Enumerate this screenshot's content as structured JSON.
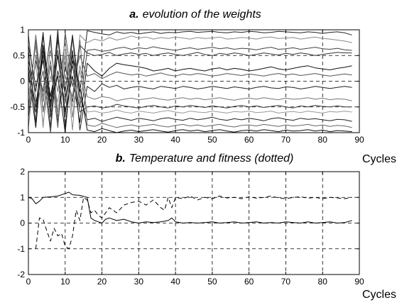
{
  "chart_data": [
    {
      "type": "line",
      "title_prefix": "a.",
      "title": "evolution of the weights",
      "xlabel": "",
      "ylabel": "",
      "xlim": [
        0,
        90
      ],
      "ylim": [
        -1,
        1
      ],
      "xticks": [
        0,
        10,
        20,
        30,
        40,
        50,
        60,
        70,
        80,
        90
      ],
      "yticks": [
        -1,
        -0.5,
        0,
        0.5,
        1
      ],
      "xtick_labels": [
        "0",
        "10",
        "20",
        "30",
        "40",
        "50",
        "60",
        "70",
        "80",
        "90"
      ],
      "ytick_labels": [
        "-1",
        "-0.5",
        "0",
        "0.5",
        "1"
      ],
      "grid": true,
      "x": [
        0,
        2,
        4,
        6,
        8,
        10,
        12,
        14,
        16,
        18,
        20,
        22,
        24,
        26,
        28,
        30,
        32,
        34,
        36,
        38,
        40,
        42,
        44,
        46,
        48,
        50,
        52,
        54,
        56,
        58,
        60,
        62,
        64,
        66,
        68,
        70,
        72,
        74,
        76,
        78,
        80,
        82,
        84,
        86,
        88
      ],
      "series": [
        {
          "color": "#222222",
          "values": [
            0.6,
            -0.8,
            0.9,
            -0.5,
            1,
            -0.9,
            0.4,
            -0.2,
            0.98,
            0.95,
            0.92,
            0.9,
            0.96,
            0.93,
            0.95,
            0.92,
            0.94,
            0.96,
            0.93,
            0.95,
            0.94,
            0.96,
            0.97,
            0.95,
            0.96,
            0.97,
            0.95,
            0.94,
            0.96,
            0.95,
            0.97,
            0.96,
            0.94,
            0.95,
            0.97,
            0.96,
            0.95,
            0.94,
            0.96,
            0.95,
            0.93,
            0.95,
            0.96,
            0.94,
            0.9
          ]
        },
        {
          "color": "#888888",
          "values": [
            -0.3,
            0.7,
            -0.9,
            0.8,
            -0.6,
            0.5,
            -0.95,
            0.9,
            0.75,
            0.82,
            0.78,
            0.85,
            0.8,
            0.83,
            0.88,
            0.84,
            0.86,
            0.82,
            0.85,
            0.83,
            0.86,
            0.84,
            0.82,
            0.85,
            0.83,
            0.84,
            0.86,
            0.82,
            0.83,
            0.85,
            0.84,
            0.82,
            0.85,
            0.86,
            0.83,
            0.84,
            0.85,
            0.82,
            0.84,
            0.86,
            0.83,
            0.82,
            0.8,
            0.78,
            0.75
          ]
        },
        {
          "color": "#444444",
          "values": [
            0.9,
            -0.4,
            0.2,
            -1,
            0.6,
            -0.7,
            0.85,
            -0.5,
            0.6,
            0.62,
            0.58,
            0.6,
            0.64,
            0.66,
            0.62,
            0.65,
            0.63,
            0.67,
            0.64,
            0.62,
            0.6,
            0.63,
            0.65,
            0.62,
            0.64,
            0.66,
            0.63,
            0.65,
            0.62,
            0.64,
            0.63,
            0.61,
            0.64,
            0.66,
            0.62,
            0.63,
            0.65,
            0.62,
            0.64,
            0.66,
            0.63,
            0.62,
            0.64,
            0.61,
            0.6
          ]
        },
        {
          "color": "#333333",
          "values": [
            -0.7,
            0.4,
            -0.2,
            0.9,
            -0.8,
            0.3,
            -0.4,
            0.7,
            0.55,
            0.5,
            0.52,
            0.56,
            0.5,
            0.53,
            0.55,
            0.52,
            0.54,
            0.5,
            0.53,
            0.55,
            0.52,
            0.5,
            0.53,
            0.56,
            0.52,
            0.5,
            0.54,
            0.52,
            0.55,
            0.53,
            0.5,
            0.52,
            0.55,
            0.53,
            0.51,
            0.54,
            0.52,
            0.55,
            0.53,
            0.5,
            0.52,
            0.54,
            0.56,
            0.55,
            0.55
          ]
        },
        {
          "color": "#111111",
          "values": [
            0.2,
            -0.9,
            0.7,
            -0.3,
            0.5,
            -0.6,
            0.1,
            -0.8,
            0.35,
            0.2,
            0.1,
            0.25,
            0.35,
            0.32,
            0.3,
            0.28,
            0.25,
            0.2,
            0.22,
            0.25,
            0.2,
            0.23,
            0.25,
            0.22,
            0.2,
            0.24,
            0.26,
            0.22,
            0.25,
            0.23,
            0.2,
            0.22,
            0.25,
            0.28,
            0.24,
            0.22,
            0.25,
            0.28,
            0.3,
            0.26,
            0.24,
            0.22,
            0.25,
            0.27,
            0.3
          ]
        },
        {
          "color": "#555555",
          "values": [
            -0.5,
            0.8,
            -0.6,
            0.3,
            -0.9,
            0.95,
            -0.1,
            0.5,
            0.1,
            0.15,
            0.05,
            0.12,
            0.18,
            0.15,
            0.12,
            0.14,
            0.1,
            0.13,
            0.16,
            0.12,
            0.1,
            0.14,
            0.12,
            0.15,
            0.13,
            0.1,
            0.12,
            0.15,
            0.13,
            0.11,
            0.14,
            0.12,
            0.1,
            0.13,
            0.15,
            0.12,
            0.14,
            0.11,
            0.13,
            0.15,
            0.12,
            0.1,
            0.12,
            0.14,
            0.12
          ]
        },
        {
          "color": "#222222",
          "values": [
            0.4,
            -0.2,
            0.95,
            -0.7,
            0.2,
            -0.4,
            0.6,
            -0.95,
            -0.1,
            -0.2,
            -0.05,
            -0.12,
            -0.08,
            -0.15,
            -0.12,
            -0.1,
            -0.13,
            -0.15,
            -0.1,
            -0.12,
            -0.14,
            -0.1,
            -0.12,
            -0.15,
            -0.13,
            -0.1,
            -0.12,
            -0.14,
            -0.11,
            -0.13,
            -0.15,
            -0.12,
            -0.1,
            -0.13,
            -0.14,
            -0.11,
            -0.12,
            -0.15,
            -0.13,
            -0.1,
            -0.12,
            -0.14,
            -0.12,
            -0.1,
            -0.12
          ]
        },
        {
          "color": "#777777",
          "values": [
            -0.9,
            0.5,
            -0.3,
            0.6,
            -0.2,
            0.8,
            -0.7,
            0.3,
            -0.3,
            -0.35,
            -0.3,
            -0.32,
            -0.38,
            -0.35,
            -0.33,
            -0.36,
            -0.34,
            -0.32,
            -0.35,
            -0.37,
            -0.34,
            -0.32,
            -0.35,
            -0.33,
            -0.36,
            -0.34,
            -0.32,
            -0.35,
            -0.37,
            -0.34,
            -0.33,
            -0.35,
            -0.32,
            -0.34,
            -0.36,
            -0.33,
            -0.35,
            -0.34,
            -0.32,
            -0.35,
            -0.33,
            -0.36,
            -0.34,
            -0.35,
            -0.38
          ]
        },
        {
          "color": "#333333",
          "values": [
            0.1,
            -0.6,
            0.5,
            -0.9,
            0.9,
            -0.3,
            0.3,
            -0.6,
            -0.5,
            -0.48,
            -0.52,
            -0.5,
            -0.45,
            -0.48,
            -0.5,
            -0.52,
            -0.49,
            -0.47,
            -0.5,
            -0.52,
            -0.48,
            -0.5,
            -0.47,
            -0.49,
            -0.51,
            -0.48,
            -0.5,
            -0.52,
            -0.49,
            -0.47,
            -0.5,
            -0.48,
            -0.51,
            -0.49,
            -0.47,
            -0.5,
            -0.52,
            -0.48,
            -0.5,
            -0.47,
            -0.49,
            -0.5,
            -0.48,
            -0.5,
            -0.5
          ]
        },
        {
          "color": "#999999",
          "values": [
            -0.2,
            0.3,
            -0.8,
            0.1,
            -0.4,
            0.6,
            -0.5,
            0.2,
            -0.6,
            -0.58,
            -0.62,
            -0.6,
            -0.56,
            -0.6,
            -0.62,
            -0.58,
            -0.6,
            -0.62,
            -0.59,
            -0.57,
            -0.6,
            -0.62,
            -0.58,
            -0.6,
            -0.61,
            -0.58,
            -0.6,
            -0.62,
            -0.59,
            -0.6,
            -0.58,
            -0.61,
            -0.6,
            -0.58,
            -0.62,
            -0.6,
            -0.59,
            -0.61,
            -0.58,
            -0.6,
            -0.62,
            -0.59,
            -0.6,
            -0.58,
            -0.6
          ]
        },
        {
          "color": "#222222",
          "values": [
            0.7,
            -0.1,
            0.4,
            -0.6,
            0.8,
            -0.2,
            0.9,
            -0.3,
            -0.75,
            -0.72,
            -0.78,
            -0.74,
            -0.7,
            -0.73,
            -0.76,
            -0.72,
            -0.74,
            -0.77,
            -0.73,
            -0.71,
            -0.74,
            -0.76,
            -0.72,
            -0.75,
            -0.73,
            -0.7,
            -0.74,
            -0.76,
            -0.73,
            -0.75,
            -0.72,
            -0.74,
            -0.77,
            -0.73,
            -0.71,
            -0.74,
            -0.76,
            -0.72,
            -0.74,
            -0.73,
            -0.75,
            -0.77,
            -0.74,
            -0.75,
            -0.78
          ]
        },
        {
          "color": "#666666",
          "values": [
            -0.6,
            0.9,
            -0.4,
            0.4,
            -0.7,
            0.1,
            -0.3,
            0.8,
            -0.85,
            -0.88,
            -0.82,
            -0.86,
            -0.9,
            -0.87,
            -0.85,
            -0.88,
            -0.86,
            -0.84,
            -0.87,
            -0.89,
            -0.86,
            -0.84,
            -0.87,
            -0.85,
            -0.88,
            -0.86,
            -0.84,
            -0.87,
            -0.89,
            -0.86,
            -0.85,
            -0.87,
            -0.84,
            -0.86,
            -0.88,
            -0.85,
            -0.87,
            -0.86,
            -0.84,
            -0.87,
            -0.85,
            -0.88,
            -0.86,
            -0.87,
            -0.9
          ]
        },
        {
          "color": "#111111",
          "values": [
            0.3,
            -0.5,
            0.6,
            -0.4,
            0.1,
            -1,
            0.5,
            -0.1,
            -0.95,
            -0.98,
            -0.92,
            -0.96,
            -1,
            -0.97,
            -0.95,
            -0.98,
            -0.96,
            -0.94,
            -0.97,
            -0.99,
            -0.96,
            -0.94,
            -0.97,
            -0.95,
            -0.98,
            -0.96,
            -0.94,
            -0.97,
            -0.99,
            -0.96,
            -0.95,
            -0.97,
            -0.94,
            -0.96,
            -0.98,
            -0.95,
            -0.97,
            -0.96,
            -0.94,
            -0.97,
            -0.95,
            -0.98,
            -0.96,
            -0.97,
            -0.98
          ]
        }
      ]
    },
    {
      "type": "line",
      "title_prefix": "b.",
      "title": "Temperature and fitness (dotted)",
      "xlabel": "Cycles",
      "ylabel": "",
      "xlim": [
        0,
        90
      ],
      "ylim": [
        -2,
        2
      ],
      "xticks": [
        0,
        10,
        20,
        30,
        40,
        50,
        60,
        70,
        80,
        90
      ],
      "yticks": [
        -2,
        -1,
        0,
        1,
        2
      ],
      "xtick_labels": [
        "0",
        "10",
        "20",
        "30",
        "40",
        "50",
        "60",
        "70",
        "80",
        "90"
      ],
      "ytick_labels": [
        "-2",
        "-1",
        "0",
        "1",
        "2"
      ],
      "grid": true,
      "series": [
        {
          "color": "#000000",
          "dashed": false,
          "x": [
            0,
            1,
            2,
            3,
            4,
            6,
            8,
            10,
            11,
            12,
            14,
            16,
            17,
            18,
            19,
            20,
            21,
            22,
            24,
            26,
            28,
            30,
            32,
            34,
            36,
            38,
            39,
            40,
            42,
            44,
            46,
            48,
            50,
            52,
            54,
            56,
            58,
            60,
            62,
            64,
            66,
            68,
            70,
            72,
            74,
            76,
            78,
            80,
            82,
            84,
            86,
            88
          ],
          "values": [
            1.0,
            0.95,
            0.75,
            0.85,
            1.0,
            1.02,
            1.05,
            1.15,
            1.2,
            1.1,
            1.08,
            1.0,
            0.2,
            0.1,
            0.05,
            0.0,
            0.15,
            0.2,
            0.1,
            0.15,
            0.05,
            0.0,
            0.05,
            0.02,
            0.05,
            0.1,
            0.2,
            0.05,
            0.0,
            0.02,
            0.0,
            0.02,
            0.05,
            0.0,
            0.02,
            0.05,
            0.0,
            0.02,
            0.05,
            0.0,
            0.02,
            0.0,
            0.05,
            0.02,
            0.0,
            0.05,
            0.0,
            0.02,
            0.05,
            0.0,
            0.02,
            0.1
          ]
        },
        {
          "color": "#000000",
          "dashed": true,
          "x": [
            2,
            3,
            4,
            5,
            6,
            7,
            8,
            9,
            10,
            11,
            12,
            13,
            14,
            15,
            16,
            17,
            18,
            19,
            20,
            22,
            24,
            26,
            28,
            30,
            32,
            34,
            36,
            37,
            38,
            39,
            40,
            42,
            44,
            46,
            48,
            50,
            52,
            54,
            56,
            58,
            60,
            62,
            64,
            66,
            68,
            70,
            72,
            74,
            76,
            78,
            80,
            82,
            84,
            86,
            88
          ],
          "values": [
            -1.0,
            0.2,
            0.15,
            -0.3,
            -0.7,
            -0.2,
            -0.5,
            -0.4,
            -0.9,
            -1.0,
            -0.5,
            0.5,
            0.1,
            1.0,
            0.9,
            0.4,
            0.5,
            0.3,
            0.2,
            0.6,
            0.4,
            0.7,
            0.8,
            0.85,
            0.7,
            0.9,
            0.6,
            0.5,
            1.0,
            0.6,
            1.0,
            0.95,
            1.05,
            0.9,
            1.0,
            0.95,
            1.05,
            0.98,
            1.0,
            0.95,
            1.02,
            0.97,
            1.0,
            1.05,
            0.98,
            0.95,
            1.0,
            1.02,
            0.97,
            1.0,
            0.95,
            1.0,
            0.98,
            0.95,
            1.0
          ]
        }
      ]
    }
  ]
}
